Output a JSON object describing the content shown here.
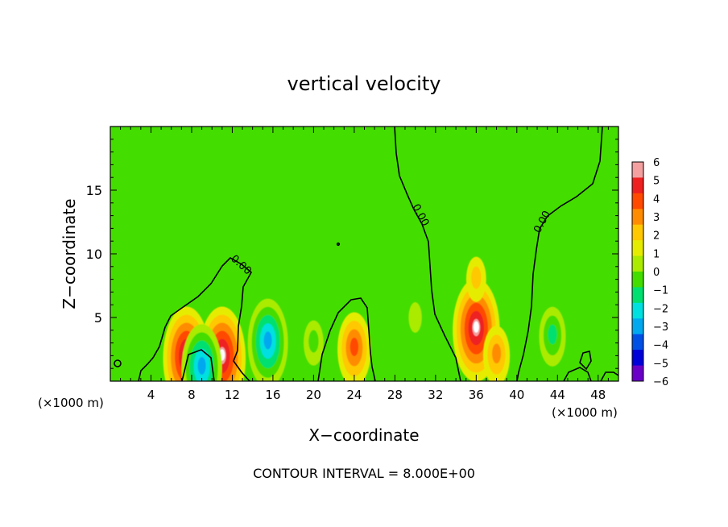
{
  "chart_data": {
    "type": "heatmap",
    "title": "vertical velocity",
    "xlabel": "X−coordinate",
    "ylabel": "Z−coordinate",
    "x_unit_left": "(×1000 m)",
    "x_unit_right": "(×1000 m)",
    "footer": "CONTOUR INTERVAL = 8.000E+00",
    "xlim": [
      0,
      50
    ],
    "ylim": [
      0,
      20
    ],
    "x_ticks": [
      4,
      8,
      12,
      16,
      20,
      24,
      28,
      32,
      36,
      40,
      44,
      48
    ],
    "y_ticks": [
      5,
      10,
      15
    ],
    "colorbar": {
      "levels": [
        6,
        5,
        4,
        3,
        2,
        1,
        0,
        -1,
        -2,
        -3,
        -4,
        -5,
        -6
      ],
      "colors": [
        "#f4a0a0",
        "#ee2020",
        "#ff4a00",
        "#ff8c00",
        "#ffc800",
        "#e6ec00",
        "#aaeb00",
        "#44dd00",
        "#00e070",
        "#00e0e0",
        "#00a8f0",
        "#0050e6",
        "#0000d8",
        "#6a00c8"
      ]
    },
    "contour_labels": [
      "0.00",
      "0.00",
      "0.00"
    ],
    "anomalies": [
      {
        "x": 7.5,
        "z": 1.8,
        "value": 5.4
      },
      {
        "x": 11.0,
        "z": 1.8,
        "value": 5.6
      },
      {
        "x": 9.0,
        "z": 1.0,
        "value": -4.8
      },
      {
        "x": 15.5,
        "z": 3.0,
        "value": -4.5
      },
      {
        "x": 24.0,
        "z": 2.5,
        "value": 3.2
      },
      {
        "x": 36.0,
        "z": 4.0,
        "value": 6.0
      },
      {
        "x": 36.0,
        "z": 8.0,
        "value": 1.2
      },
      {
        "x": 38.0,
        "z": 2.0,
        "value": 3.0
      },
      {
        "x": 43.5,
        "z": 3.5,
        "value": -2.6
      },
      {
        "x": 30.0,
        "z": 5.0,
        "value": -1.0
      },
      {
        "x": 20.0,
        "z": 3.0,
        "value": -1.5
      }
    ]
  }
}
